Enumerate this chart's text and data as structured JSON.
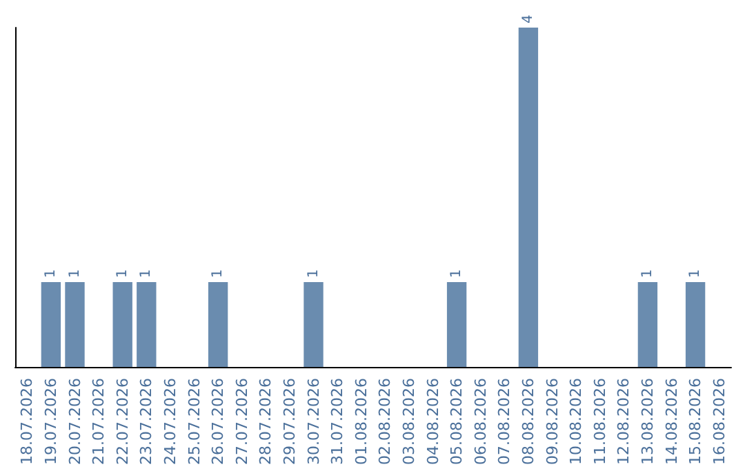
{
  "chart_data": {
    "type": "bar",
    "categories": [
      "18.07.2026",
      "19.07.2026",
      "20.07.2026",
      "21.07.2026",
      "22.07.2026",
      "23.07.2026",
      "24.07.2026",
      "25.07.2026",
      "26.07.2026",
      "27.07.2026",
      "28.07.2026",
      "29.07.2026",
      "30.07.2026",
      "31.07.2026",
      "01.08.2026",
      "02.08.2026",
      "03.08.2026",
      "04.08.2026",
      "05.08.2026",
      "06.08.2026",
      "07.08.2026",
      "08.08.2026",
      "09.08.2026",
      "10.08.2026",
      "11.08.2026",
      "12.08.2026",
      "13.08.2026",
      "14.08.2026",
      "15.08.2026",
      "16.08.2026"
    ],
    "values": [
      0,
      1,
      1,
      0,
      1,
      1,
      0,
      0,
      1,
      0,
      0,
      0,
      1,
      0,
      0,
      0,
      0,
      0,
      1,
      0,
      0,
      4,
      0,
      0,
      0,
      0,
      1,
      0,
      1,
      0
    ],
    "value_labels": [
      null,
      "1",
      "1",
      null,
      "1",
      "1",
      null,
      null,
      "1",
      null,
      null,
      null,
      "1",
      null,
      null,
      null,
      null,
      null,
      "1",
      null,
      null,
      "4",
      null,
      null,
      null,
      null,
      "1",
      null,
      "1",
      null
    ],
    "color": "#6a8caf"
  }
}
